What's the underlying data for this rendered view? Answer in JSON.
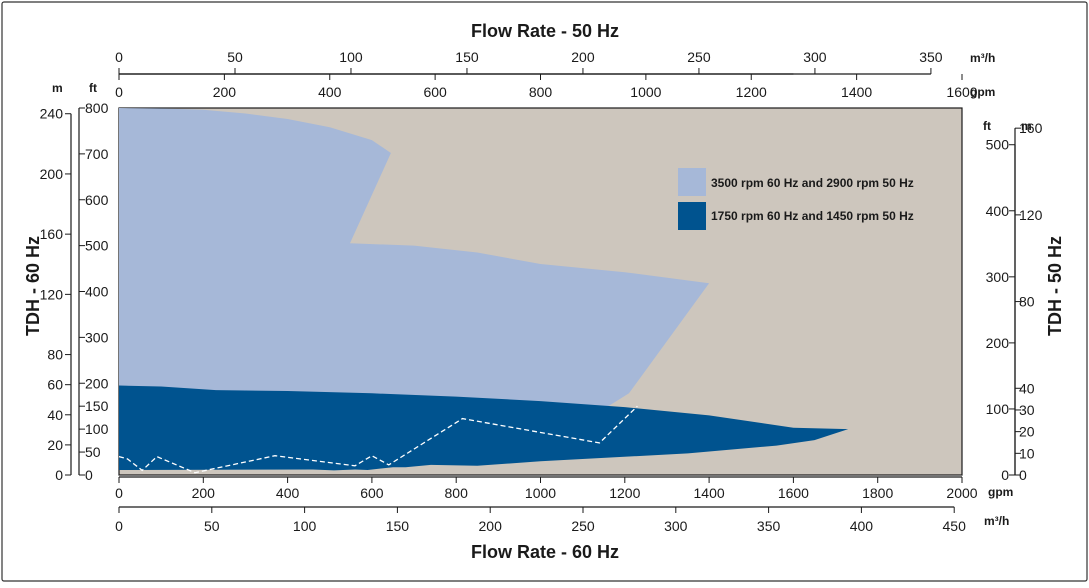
{
  "chart_data": {
    "type": "area",
    "grid": false,
    "legend_placement": "top-right",
    "colors": {
      "plot_bg": "#cdc6bd",
      "series_3500": "#a6b8d8",
      "series_1750": "#00538f",
      "dashed": "#ffffff",
      "frame": "#1a1a1a"
    },
    "titles": {
      "top": "Flow Rate - 50 Hz",
      "bottom": "Flow Rate - 60 Hz",
      "left": "TDH - 60 Hz",
      "right": "TDH - 50 Hz"
    },
    "units": {
      "top_m3h": "m³/h",
      "top_gpm": "gpm",
      "bottom_gpm": "gpm",
      "bottom_m3h": "m³/h",
      "left_m": "m",
      "left_ft": "ft",
      "right_ft": "ft",
      "right_m": "m"
    },
    "axes": {
      "x_gpm_60": {
        "range": [
          0,
          2000
        ],
        "ticks": [
          "0",
          "200",
          "400",
          "600",
          "800",
          "1000",
          "1200",
          "1400",
          "1600",
          "1800",
          "2000"
        ]
      },
      "x_m3h_60": {
        "range": [
          0,
          454.2
        ],
        "ticks": [
          "0",
          "50",
          "100",
          "150",
          "200",
          "250",
          "300",
          "350",
          "400",
          "450"
        ]
      },
      "x_gpm_50": {
        "range": [
          0,
          1600
        ],
        "ticks": [
          "0",
          "200",
          "400",
          "600",
          "800",
          "1000",
          "1200",
          "1400",
          "1600"
        ]
      },
      "x_m3h_50": {
        "range": [
          0,
          363.4
        ],
        "ticks": [
          "0",
          "50",
          "100",
          "150",
          "200",
          "250",
          "300",
          "350"
        ]
      },
      "y_ft_60": {
        "range": [
          0,
          800
        ],
        "ticks": [
          "0",
          "50",
          "100",
          "150",
          "200",
          "300",
          "400",
          "500",
          "600",
          "700",
          "800"
        ]
      },
      "y_m_60": {
        "range": [
          0,
          243.8
        ],
        "ticks": [
          "0",
          "20",
          "40",
          "60",
          "80",
          "120",
          "160",
          "200",
          "240"
        ]
      },
      "y_ft_50": {
        "range": [
          0,
          555.6
        ],
        "ticks": [
          "0",
          "100",
          "200",
          "300",
          "400",
          "500"
        ]
      },
      "y_m_50": {
        "range": [
          0,
          169.3
        ],
        "ticks": [
          "0",
          "10",
          "20",
          "30",
          "40",
          "80",
          "120",
          "160"
        ]
      }
    },
    "series": [
      {
        "name": "3500 rpm 60 Hz and 2900 rpm 50 Hz",
        "x_gpm": [
          0,
          100,
          200,
          300,
          400,
          500,
          600,
          645,
          548,
          700,
          850,
          1000,
          1200,
          1400,
          1210,
          1130,
          900,
          700,
          500,
          300,
          0
        ],
        "y_ft": [
          800,
          799,
          796,
          788,
          776,
          758,
          730,
          702,
          505,
          500,
          485,
          460,
          442,
          418,
          178,
          132,
          92,
          80,
          68,
          55,
          50
        ]
      },
      {
        "name": "1750 rpm 60 Hz and 1450 rpm 50 Hz",
        "x_gpm": [
          0,
          100,
          230,
          400,
          600,
          800,
          1000,
          1200,
          1400,
          1600,
          1730,
          1650,
          1560,
          1350,
          1000,
          850,
          740,
          680,
          650,
          590,
          560,
          510,
          460,
          0
        ],
        "y_ft": [
          195,
          193,
          185,
          183,
          178,
          171,
          161,
          148,
          130,
          103,
          100,
          76,
          64,
          47,
          30,
          20,
          22,
          17,
          17,
          11,
          12,
          10,
          12,
          11
        ]
      }
    ],
    "dashed_boundary": {
      "x_gpm": [
        0,
        20,
        55,
        90,
        180,
        370,
        560,
        600,
        640,
        815,
        1140,
        1230
      ],
      "y_ft": [
        40,
        35,
        10,
        40,
        5,
        42,
        20,
        42,
        22,
        123,
        70,
        150
      ]
    }
  }
}
